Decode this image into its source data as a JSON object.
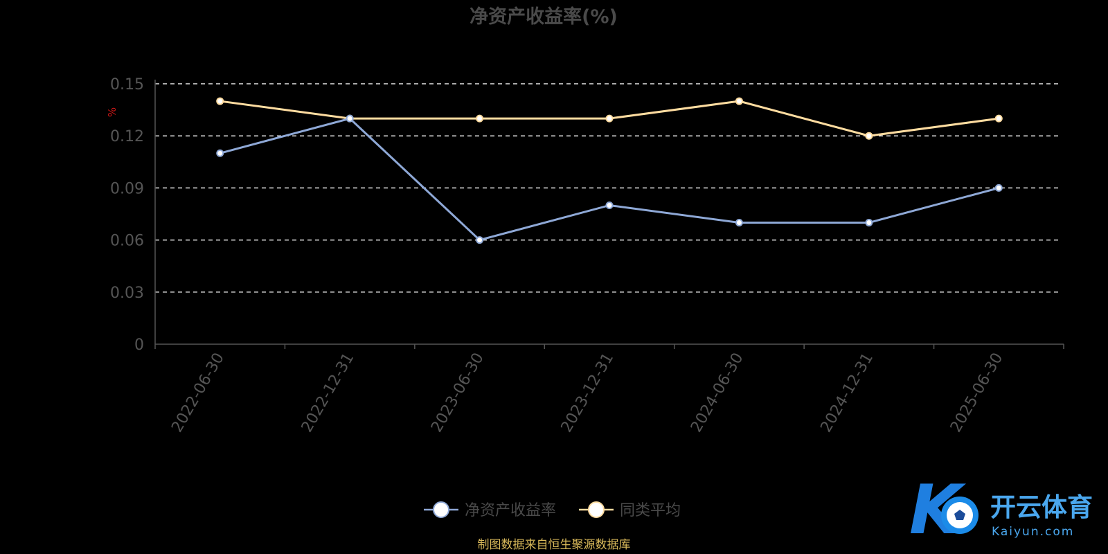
{
  "chart_data": {
    "type": "line",
    "title": "净资产收益率(%)",
    "ylabel": "%",
    "ylim": [
      0,
      0.15
    ],
    "yticks": [
      "0",
      "0.03",
      "0.06",
      "0.09",
      "0.12",
      "0.15"
    ],
    "categories": [
      "2022-06-30",
      "2022-12-31",
      "2023-06-30",
      "2023-12-31",
      "2024-06-30",
      "2024-12-31",
      "2025-06-30"
    ],
    "grid": true,
    "legend_position": "bottom",
    "series": [
      {
        "name": "净资产收益率",
        "color": "#8ea8d6",
        "values": [
          0.11,
          0.13,
          0.06,
          0.08,
          0.07,
          0.07,
          0.09
        ]
      },
      {
        "name": "同类平均",
        "color": "#ffdca0",
        "values": [
          0.14,
          0.13,
          0.13,
          0.13,
          0.14,
          0.12,
          0.13
        ]
      }
    ]
  },
  "source_note": "制图数据来自恒生聚源数据库",
  "watermark": {
    "name": "开云体育",
    "domain": "Kaiyun.com"
  }
}
